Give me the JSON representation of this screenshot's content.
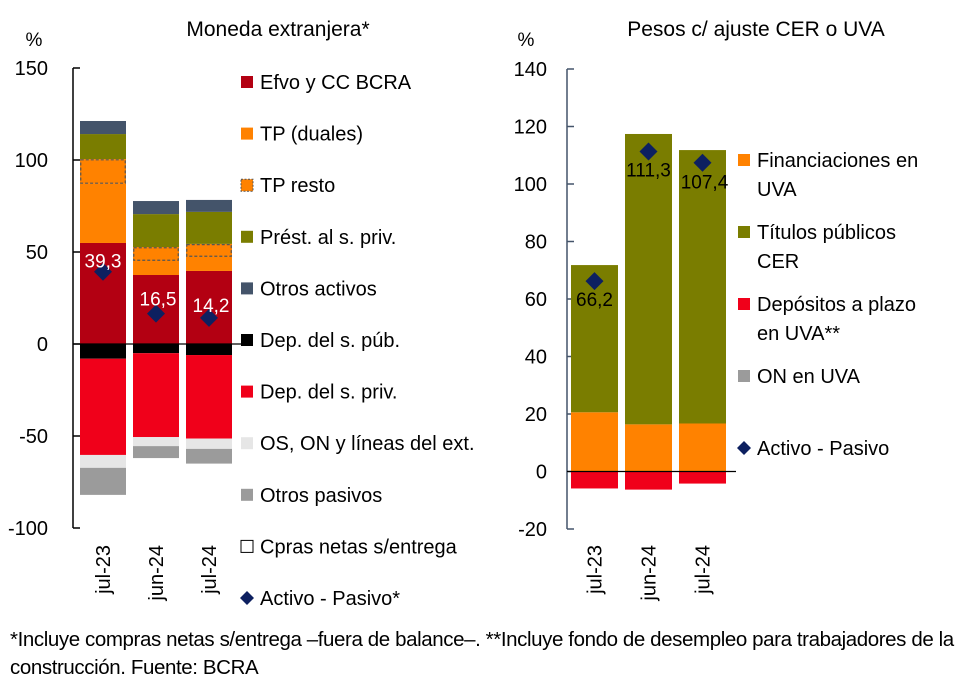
{
  "chart_data": [
    {
      "type": "bar",
      "stacked": true,
      "title": "Moneda extranjera*",
      "ylabel": "%",
      "ylim": [
        -100,
        150
      ],
      "yticks": [
        150,
        100,
        50,
        0,
        -50,
        -100
      ],
      "ytick_labels": [
        "150",
        "100",
        "50",
        "0",
        "-50",
        "-100"
      ],
      "categories": [
        "jul-23",
        "jun-24",
        "jul-24"
      ],
      "series": [
        {
          "name": "Efvo y CC BCRA",
          "color": "#b30012",
          "values": [
            54.9,
            37.5,
            39.7
          ]
        },
        {
          "name": "TP (duales)",
          "color": "#ff8200",
          "values": [
            32.1,
            7.6,
            7.6
          ]
        },
        {
          "name": "TP resto",
          "color": "#ff8200",
          "dashed": true,
          "values": [
            13.5,
            7.6,
            7.1
          ]
        },
        {
          "name": "Prést. al s. priv.",
          "color": "#7a7d00",
          "values": [
            13.6,
            17.9,
            17.4
          ]
        },
        {
          "name": "Otros activos",
          "color": "#44546a",
          "values": [
            7.1,
            7.1,
            6.5
          ]
        },
        {
          "name": "Dep. del s. púb.",
          "color": "#000000",
          "values": [
            -8.0,
            -5.0,
            -6.0
          ]
        },
        {
          "name": "Dep. del s. priv.",
          "color": "#f0001a",
          "values": [
            -52.3,
            -45.6,
            -45.4
          ]
        },
        {
          "name": "OS, ON y líneas del ext.",
          "color": "#e6e6e6",
          "values": [
            -7.0,
            -4.9,
            -5.6
          ]
        },
        {
          "name": "Otros pasivos",
          "color": "#9b9b9b",
          "values": [
            -14.7,
            -6.5,
            -8.0
          ]
        },
        {
          "name": "Cpras netas s/entrega",
          "color": "#ffffff",
          "values": [
            0,
            0,
            0
          ]
        }
      ],
      "line_series": {
        "name": "Activo - Pasivo*",
        "color": "#0d2060",
        "marker": "diamond",
        "values": [
          39.3,
          16.5,
          14.2
        ]
      },
      "data_labels": [
        "39,3",
        "16,5",
        "14,2"
      ],
      "legend": "right"
    },
    {
      "type": "bar",
      "stacked": true,
      "title": "Pesos c/ ajuste  CER o UVA",
      "ylabel": "%",
      "ylim": [
        -20,
        140
      ],
      "yticks": [
        140,
        120,
        100,
        80,
        60,
        40,
        20,
        0,
        -20
      ],
      "ytick_labels": [
        "140",
        "120",
        "100",
        "80",
        "60",
        "40",
        "20",
        "0",
        "-20"
      ],
      "categories": [
        "jul-23",
        "jun-24",
        "jul-24"
      ],
      "series": [
        {
          "name": "Financiaciones en UVA",
          "color": "#ff8200",
          "values": [
            20.6,
            16.4,
            16.7
          ]
        },
        {
          "name": "Títulos públicos CER",
          "color": "#7a7d00",
          "values": [
            51.2,
            101.0,
            95.1
          ]
        },
        {
          "name": "Depósitos a plazo en UVA**",
          "color": "#f0001a",
          "values": [
            -5.9,
            -6.3,
            -4.2
          ]
        },
        {
          "name": "ON en UVA",
          "color": "#9b9b9b",
          "values": [
            0,
            0,
            0
          ]
        }
      ],
      "line_series": {
        "name": "Activo - Pasivo",
        "color": "#0d2060",
        "marker": "diamond",
        "values": [
          66.2,
          111.3,
          107.4
        ]
      },
      "data_labels": [
        "66,2",
        "111,3",
        "107,4"
      ],
      "legend": "right"
    }
  ],
  "left_legend": [
    {
      "label": "Efvo y CC BCRA",
      "color": "#b30012",
      "kind": "square"
    },
    {
      "label": "TP (duales)",
      "color": "#ff8200",
      "kind": "square"
    },
    {
      "label": "TP resto",
      "color": "#ff8200",
      "kind": "dashed-square"
    },
    {
      "label": "Prést. al s. priv.",
      "color": "#7a7d00",
      "kind": "square"
    },
    {
      "label": "Otros activos",
      "color": "#44546a",
      "kind": "square"
    },
    {
      "label": "Dep. del s. púb.",
      "color": "#000000",
      "kind": "square"
    },
    {
      "label": "Dep. del s. priv.",
      "color": "#f0001a",
      "kind": "square"
    },
    {
      "label": "OS, ON y líneas del ext.",
      "color": "#e6e6e6",
      "kind": "square"
    },
    {
      "label": "Otros pasivos",
      "color": "#9b9b9b",
      "kind": "square"
    },
    {
      "label": "Cpras netas s/entrega",
      "color": "#ffffff",
      "kind": "outline-square"
    },
    {
      "label": "Activo - Pasivo*",
      "color": "#0d2060",
      "kind": "diamond"
    }
  ],
  "right_legend": [
    {
      "lines": [
        "Financiaciones en",
        "UVA"
      ],
      "color": "#ff8200",
      "kind": "square"
    },
    {
      "lines": [
        "Títulos públicos",
        "CER"
      ],
      "color": "#7a7d00",
      "kind": "square"
    },
    {
      "lines": [
        "Depósitos a plazo",
        "en UVA**"
      ],
      "color": "#f0001a",
      "kind": "square"
    },
    {
      "lines": [
        "ON en UVA"
      ],
      "color": "#9b9b9b",
      "kind": "square"
    },
    {
      "lines": [
        "Activo - Pasivo"
      ],
      "color": "#0d2060",
      "kind": "diamond"
    }
  ],
  "footnote": "*Incluye compras netas s/entrega –fuera de balance–. **Incluye fondo de desempleo para trabajadores de la construcción. Fuente: BCRA"
}
